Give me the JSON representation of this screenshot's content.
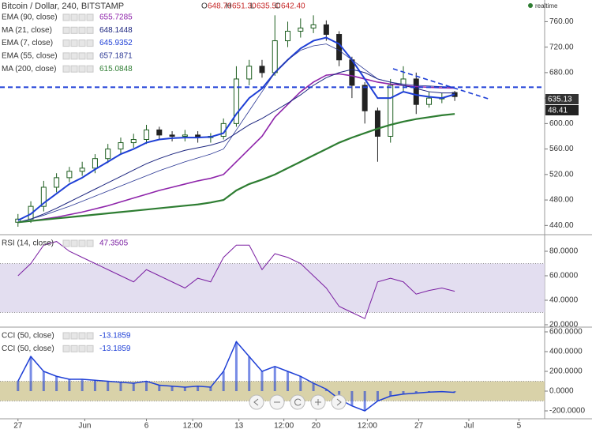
{
  "chart_data": [
    {
      "type": "candlestick",
      "title": "Bitcoin / Dollar, 240, BITSTAMP",
      "ohlc": [
        {
          "label": "O",
          "value": "648.70"
        },
        {
          "label": "H",
          "value": "651.30"
        },
        {
          "label": "L",
          "value": "635.50"
        },
        {
          "label": "C",
          "value": "642.40"
        }
      ],
      "realtime": "realtime",
      "x": [
        0,
        1,
        2,
        3,
        4,
        5,
        6,
        7,
        8,
        9,
        10,
        11,
        12,
        13,
        14,
        15,
        16,
        17,
        18,
        19,
        20,
        21,
        22,
        23,
        24,
        25,
        26,
        27,
        28,
        29,
        30,
        31,
        32,
        33,
        34
      ],
      "open": [
        445,
        450,
        470,
        500,
        515,
        525,
        530,
        545,
        560,
        570,
        575,
        590,
        582,
        580,
        582,
        578,
        580,
        600,
        670,
        690,
        680,
        730,
        745,
        750,
        755,
        740,
        700,
        660,
        620,
        580,
        660,
        670,
        630,
        640,
        648.7
      ],
      "high": [
        458,
        478,
        510,
        522,
        532,
        540,
        552,
        568,
        578,
        584,
        598,
        595,
        588,
        590,
        588,
        585,
        608,
        690,
        700,
        700,
        770,
        760,
        765,
        770,
        762,
        745,
        705,
        665,
        625,
        670,
        690,
        680,
        650,
        648,
        651.3
      ],
      "low": [
        438,
        444,
        462,
        492,
        508,
        518,
        522,
        538,
        552,
        562,
        568,
        575,
        572,
        572,
        570,
        570,
        575,
        595,
        660,
        672,
        675,
        720,
        735,
        742,
        730,
        690,
        640,
        600,
        540,
        570,
        650,
        615,
        625,
        632,
        635.5
      ],
      "close": [
        450,
        470,
        500,
        515,
        525,
        530,
        545,
        560,
        570,
        575,
        590,
        582,
        580,
        582,
        578,
        580,
        600,
        670,
        690,
        680,
        730,
        745,
        750,
        755,
        740,
        700,
        660,
        620,
        580,
        660,
        670,
        630,
        640,
        640,
        642.4
      ],
      "up_color": "#1e5e20",
      "down_color": "#222222",
      "series": [
        {
          "name": "EMA (90, close)",
          "last_value_label": "655.7285",
          "color": "#8e24aa",
          "width": 1.6,
          "values": [
            445,
            447,
            450,
            453,
            457,
            461,
            466,
            471,
            477,
            483,
            489,
            495,
            500,
            505,
            510,
            514,
            520,
            540,
            560,
            580,
            610,
            630,
            650,
            665,
            676,
            678,
            675,
            670,
            665,
            662,
            660,
            658,
            657,
            656,
            655.7
          ]
        },
        {
          "name": "MA (21, close)",
          "last_value_label": "648.1448",
          "color": "#1a237e",
          "width": 1,
          "values": [
            445,
            450,
            458,
            467,
            477,
            487,
            497,
            507,
            517,
            527,
            537,
            545,
            552,
            558,
            562,
            566,
            572,
            585,
            598,
            608,
            620,
            632,
            645,
            660,
            672,
            680,
            685,
            680,
            670,
            665,
            660,
            655,
            650,
            648,
            648.1
          ]
        },
        {
          "name": "EMA (7, close)",
          "last_value_label": "645.9352",
          "color": "#1e3fd6",
          "width": 2,
          "values": [
            448,
            458,
            475,
            490,
            505,
            515,
            528,
            540,
            552,
            560,
            570,
            575,
            577,
            578,
            578,
            579,
            585,
            615,
            640,
            655,
            680,
            700,
            718,
            730,
            735,
            725,
            700,
            670,
            640,
            640,
            650,
            645,
            642,
            640,
            645.9
          ]
        },
        {
          "name": "EMA (55, close)",
          "last_value_label": "657.1871",
          "color": "#283593",
          "width": 0.8,
          "values": [
            445,
            450,
            456,
            463,
            470,
            478,
            486,
            494,
            502,
            510,
            518,
            526,
            533,
            540,
            546,
            552,
            560,
            590,
            620,
            650,
            680,
            700,
            715,
            722,
            725,
            715,
            700,
            685,
            670,
            665,
            662,
            660,
            659,
            658,
            657.2
          ]
        },
        {
          "name": "MA (200, close)",
          "last_value_label": "615.0848",
          "color": "#2e7d32",
          "width": 2.2,
          "values": [
            445,
            447,
            449,
            451,
            453,
            455,
            457,
            459,
            461,
            463,
            465,
            467,
            469,
            471,
            473,
            476,
            480,
            495,
            505,
            512,
            520,
            530,
            540,
            550,
            560,
            570,
            578,
            585,
            592,
            598,
            603,
            607,
            610,
            613,
            615.1
          ]
        }
      ],
      "hline": 657,
      "trendline": {
        "x": [
          29.2,
          36.6
        ],
        "y": [
          686,
          639
        ]
      },
      "last_labels": [
        "635.13",
        "48.41"
      ],
      "xlim": [
        -1.4,
        41.0
      ],
      "ylim": [
        428,
        794
      ],
      "yticks": [
        {
          "value": 440,
          "label": "440.00"
        },
        {
          "value": 480,
          "label": "480.00"
        },
        {
          "value": 520,
          "label": "520.00"
        },
        {
          "value": 560,
          "label": "560.00"
        },
        {
          "value": 600,
          "label": "600.00"
        },
        {
          "value": 640,
          "label": "640.00"
        },
        {
          "value": 680,
          "label": "680.00"
        },
        {
          "value": 720,
          "label": "720.00"
        },
        {
          "value": 760,
          "label": "760.00"
        }
      ]
    },
    {
      "type": "line",
      "x": [
        0,
        1,
        2,
        3,
        4,
        5,
        6,
        7,
        8,
        9,
        10,
        11,
        12,
        13,
        14,
        15,
        16,
        17,
        18,
        19,
        20,
        21,
        22,
        23,
        24,
        25,
        26,
        27,
        28,
        29,
        30,
        31,
        32,
        33,
        34
      ],
      "series": [
        {
          "name": "RSI (14, close)",
          "last_value_label": "47.3505",
          "color": "#7b1fa2",
          "width": 1,
          "style": "line",
          "values": [
            60,
            70,
            85,
            88,
            80,
            75,
            70,
            65,
            60,
            55,
            65,
            60,
            55,
            50,
            58,
            55,
            75,
            85,
            85,
            65,
            78,
            75,
            70,
            60,
            50,
            35,
            30,
            25,
            55,
            58,
            55,
            45,
            48,
            50,
            47.35
          ]
        }
      ],
      "band": {
        "range": [
          30,
          70
        ],
        "color": "#dcd6ec"
      },
      "xlim": [
        -1.4,
        41.0
      ],
      "ylim": [
        18.7,
        92.9
      ],
      "yticks": [
        {
          "value": 20,
          "label": "20.0000"
        },
        {
          "value": 40,
          "label": "40.0000"
        },
        {
          "value": 60,
          "label": "60.0000"
        },
        {
          "value": 80,
          "label": "80.0000"
        }
      ]
    },
    {
      "type": "bar",
      "x": [
        0,
        1,
        2,
        3,
        4,
        5,
        6,
        7,
        8,
        9,
        10,
        11,
        12,
        13,
        14,
        15,
        16,
        17,
        18,
        19,
        20,
        21,
        22,
        23,
        24,
        25,
        26,
        27,
        28,
        29,
        30,
        31,
        32,
        33,
        34
      ],
      "series": [
        {
          "name": "CCI (50, close)",
          "last_value_label": "-13.1859",
          "color": "#1e3fd6",
          "width": 1.5,
          "style": "line",
          "values": [
            100,
            350,
            200,
            150,
            120,
            120,
            110,
            100,
            90,
            80,
            100,
            60,
            50,
            40,
            50,
            40,
            200,
            500,
            350,
            200,
            250,
            200,
            150,
            80,
            20,
            -80,
            -150,
            -200,
            -100,
            -50,
            -30,
            -20,
            -10,
            -5,
            -13.19
          ]
        },
        {
          "name": "CCI (50, close)",
          "last_value_label": "-13.1859",
          "color": "#1e3fd6",
          "width": 3,
          "style": "bar",
          "values": [
            100,
            350,
            200,
            150,
            120,
            120,
            110,
            100,
            90,
            80,
            100,
            60,
            50,
            40,
            50,
            40,
            200,
            500,
            350,
            200,
            250,
            200,
            150,
            80,
            20,
            -80,
            -150,
            -200,
            -100,
            -50,
            -30,
            -20,
            -10,
            -5,
            -13.19
          ]
        }
      ],
      "band": {
        "range": [
          -100,
          100
        ],
        "color": "#cfc793"
      },
      "xlim": [
        -1.4,
        41.0
      ],
      "ylim": [
        -280,
        640
      ],
      "yticks": [
        {
          "value": -200,
          "label": "-200.0000"
        },
        {
          "value": 0,
          "label": "0.0000"
        },
        {
          "value": 200,
          "label": "200.0000"
        },
        {
          "value": 400,
          "label": "400.0000"
        },
        {
          "value": 600,
          "label": "600.0000"
        }
      ],
      "xticks": [
        {
          "value": 0,
          "label": "27"
        },
        {
          "value": 5.2,
          "label": "Jun"
        },
        {
          "value": 10,
          "label": "6"
        },
        {
          "value": 13.6,
          "label": "12:00"
        },
        {
          "value": 17.2,
          "label": "13"
        },
        {
          "value": 20.7,
          "label": "12:00"
        },
        {
          "value": 23.2,
          "label": "20"
        },
        {
          "value": 27.2,
          "label": "12:00"
        },
        {
          "value": 31.2,
          "label": "27"
        },
        {
          "value": 35.1,
          "label": "Jul"
        },
        {
          "value": 39,
          "label": "5"
        }
      ]
    }
  ]
}
